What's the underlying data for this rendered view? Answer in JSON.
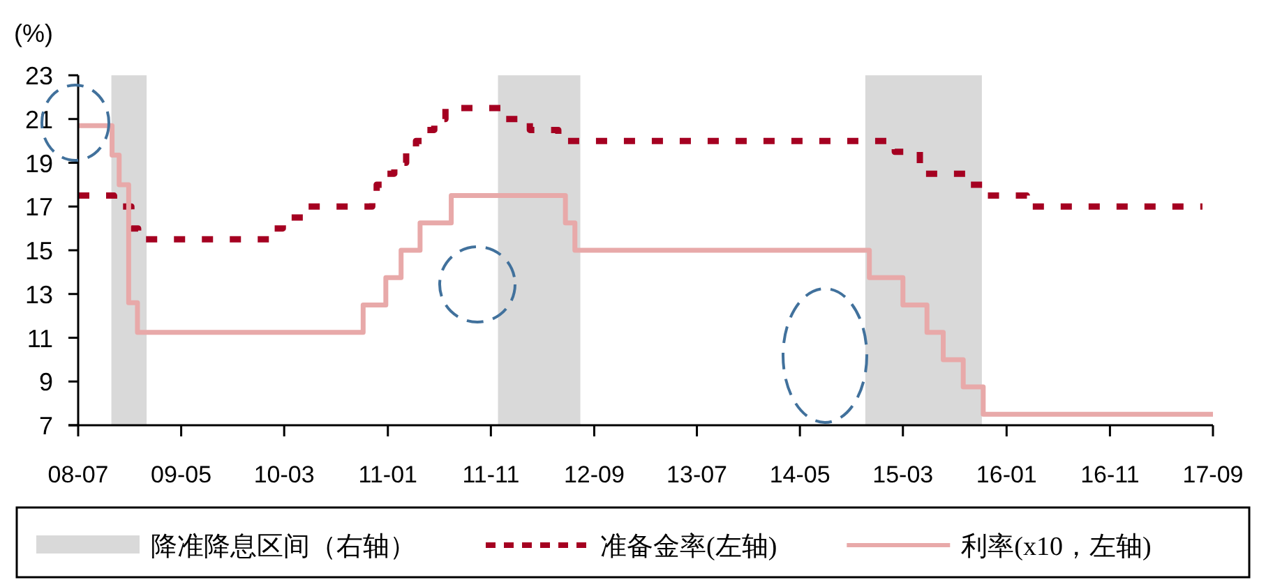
{
  "chart_data": {
    "type": "step",
    "ylabel": "(%)",
    "xlim": [
      "2008-07",
      "2017-09"
    ],
    "ylim": [
      7,
      23
    ],
    "yticks": [
      7,
      9,
      11,
      13,
      15,
      17,
      19,
      21,
      23
    ],
    "xticks": [
      {
        "value": "2008-07",
        "label": "08-07"
      },
      {
        "value": "2009-05",
        "label": "09-05"
      },
      {
        "value": "2010-03",
        "label": "10-03"
      },
      {
        "value": "2011-01",
        "label": "11-01"
      },
      {
        "value": "2011-11",
        "label": "11-11"
      },
      {
        "value": "2012-09",
        "label": "12-09"
      },
      {
        "value": "2013-07",
        "label": "13-07"
      },
      {
        "value": "2014-05",
        "label": "14-05"
      },
      {
        "value": "2015-03",
        "label": "15-03"
      },
      {
        "value": "2016-01",
        "label": "16-01"
      },
      {
        "value": "2016-11",
        "label": "16-11"
      },
      {
        "value": "2017-09",
        "label": "17-09"
      }
    ],
    "grid": false,
    "legend": "bottom",
    "bands": [
      {
        "axis": "x",
        "from": "2008-10-07",
        "to": "2009-01-19",
        "label": "降准降息区间（右轴）",
        "color": "#d9d9d9"
      },
      {
        "axis": "x",
        "from": "2011-11-22",
        "to": "2012-07-22",
        "color": "#d9d9d9"
      },
      {
        "axis": "x",
        "from": "2014-11-10",
        "to": "2015-10-20",
        "color": "#d9d9d9"
      }
    ],
    "series": [
      {
        "name": "准备金率(左轴)",
        "color": "#a50021",
        "line_style": "dashed",
        "x": [
          "2008-07-01",
          "2008-10-15",
          "2008-12-05",
          "2008-12-25",
          "2010-01-18",
          "2010-02-25",
          "2010-05-10",
          "2010-11-16",
          "2010-11-29",
          "2010-12-20",
          "2011-01-20",
          "2011-02-24",
          "2011-03-25",
          "2011-04-21",
          "2011-05-18",
          "2011-06-20",
          "2011-12-05",
          "2012-02-24",
          "2012-05-18",
          "2015-02-05",
          "2015-04-20",
          "2015-09-06",
          "2015-10-24",
          "2016-03-01",
          "2017-08-01"
        ],
        "values": [
          17.5,
          17,
          16,
          15.5,
          16,
          16.5,
          17,
          17.5,
          18,
          18.5,
          19,
          19.5,
          20,
          20.5,
          21,
          21.5,
          21,
          20.5,
          20,
          19.5,
          18.5,
          18,
          17.5,
          17,
          17
        ]
      },
      {
        "name": "利率(x10，左轴)",
        "color": "#e8a9a9",
        "line_style": "solid",
        "x": [
          "2008-07-01",
          "2008-10-09",
          "2008-10-30",
          "2008-11-27",
          "2008-12-23",
          "2010-10-20",
          "2010-12-26",
          "2011-02-09",
          "2011-04-06",
          "2011-07-07",
          "2012-06-08",
          "2012-07-06",
          "2014-11-22",
          "2015-03-01",
          "2015-05-11",
          "2015-06-28",
          "2015-08-26",
          "2015-10-24",
          "2017-09-01"
        ],
        "values": [
          20.7,
          19.35,
          18,
          12.6,
          11.25,
          12.5,
          13.75,
          15,
          16.25,
          17.5,
          16.25,
          15,
          13.75,
          12.5,
          11.25,
          10,
          8.75,
          7.5,
          7.5
        ]
      }
    ]
  }
}
